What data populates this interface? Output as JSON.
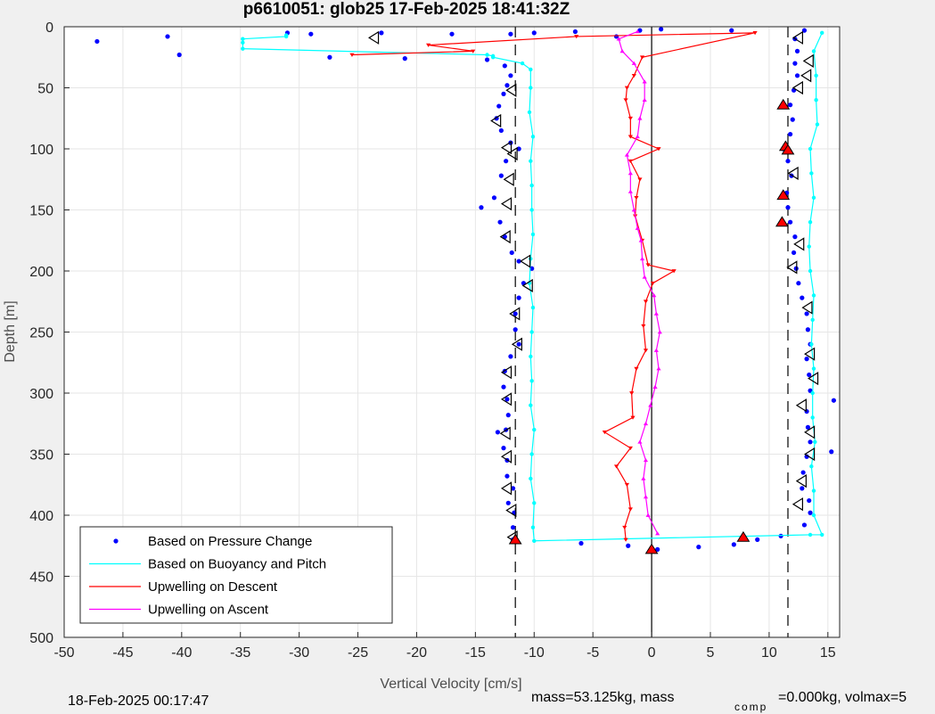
{
  "chart_data": {
    "type": "scatter",
    "title": "p6610051: glob25 17-Feb-2025 18:41:32Z",
    "xlabel": "Vertical Velocity [cm/s]",
    "ylabel": "Depth [m]",
    "xlim": [
      -50,
      16
    ],
    "ylim": [
      500,
      0
    ],
    "y_reversed": true,
    "grid": true,
    "xticks": [
      -50,
      -45,
      -40,
      -35,
      -30,
      -25,
      -20,
      -15,
      -10,
      -5,
      0,
      5,
      10,
      15
    ],
    "yticks": [
      0,
      50,
      100,
      150,
      200,
      250,
      300,
      350,
      400,
      450,
      500
    ],
    "legend_position": "bottom-left",
    "reference_lines": {
      "dashed_x": [
        -11.6,
        11.6
      ],
      "solid_x": [
        0
      ]
    },
    "series": [
      {
        "name": "Based on Pressure Change",
        "color": "#0000ff",
        "style": "dots",
        "points": [
          [
            -47.2,
            12
          ],
          [
            -41.2,
            8
          ],
          [
            -40.2,
            23
          ],
          [
            -29,
            6
          ],
          [
            -27.4,
            25
          ],
          [
            -21,
            26
          ],
          [
            -17,
            6
          ],
          [
            -14,
            27
          ],
          [
            -12.5,
            32
          ],
          [
            -12,
            40
          ],
          [
            -12.3,
            48
          ],
          [
            -12.6,
            55
          ],
          [
            -13,
            65
          ],
          [
            -13.2,
            75
          ],
          [
            -12.8,
            85
          ],
          [
            -12,
            95
          ],
          [
            -11.3,
            100
          ],
          [
            -12.4,
            110
          ],
          [
            -12.8,
            122
          ],
          [
            -13.4,
            140
          ],
          [
            -14.5,
            148
          ],
          [
            -12.9,
            160
          ],
          [
            -12.5,
            172
          ],
          [
            -11.9,
            185
          ],
          [
            -11.3,
            192
          ],
          [
            -10.2,
            198
          ],
          [
            -10.9,
            210
          ],
          [
            -11.3,
            222
          ],
          [
            -11.6,
            235
          ],
          [
            -11.6,
            248
          ],
          [
            -11.3,
            260
          ],
          [
            -12,
            270
          ],
          [
            -12.5,
            282
          ],
          [
            -12.6,
            295
          ],
          [
            -12.3,
            305
          ],
          [
            -12.2,
            318
          ],
          [
            -12.4,
            330
          ],
          [
            -13.1,
            332
          ],
          [
            -12.6,
            345
          ],
          [
            -12.3,
            355
          ],
          [
            -12.3,
            368
          ],
          [
            -11.8,
            378
          ],
          [
            -12.2,
            390
          ],
          [
            -11.7,
            398
          ],
          [
            -11.8,
            410
          ],
          [
            -11.8,
            420
          ],
          [
            -6,
            423
          ],
          [
            -2,
            425
          ],
          [
            0.5,
            428
          ],
          [
            4,
            426
          ],
          [
            7,
            424
          ],
          [
            9,
            420
          ],
          [
            11,
            417
          ],
          [
            13,
            408
          ],
          [
            13.5,
            398
          ],
          [
            13.4,
            388
          ],
          [
            12.8,
            378
          ],
          [
            12.9,
            365
          ],
          [
            13.2,
            352
          ],
          [
            15.3,
            348
          ],
          [
            13.5,
            340
          ],
          [
            13.3,
            328
          ],
          [
            13.2,
            315
          ],
          [
            15.5,
            306
          ],
          [
            13.5,
            298
          ],
          [
            13.4,
            285
          ],
          [
            13.2,
            272
          ],
          [
            13.5,
            260
          ],
          [
            13.3,
            248
          ],
          [
            13.2,
            235
          ],
          [
            12.8,
            222
          ],
          [
            12.5,
            210
          ],
          [
            12.3,
            198
          ],
          [
            12.1,
            185
          ],
          [
            12.2,
            172
          ],
          [
            11.8,
            160
          ],
          [
            11.6,
            148
          ],
          [
            11.5,
            136
          ],
          [
            11.9,
            122
          ],
          [
            11.6,
            110
          ],
          [
            11.2,
            100
          ],
          [
            11.8,
            88
          ],
          [
            12,
            76
          ],
          [
            11.8,
            64
          ],
          [
            12.1,
            52
          ],
          [
            12.4,
            40
          ],
          [
            12.2,
            30
          ],
          [
            12.4,
            20
          ],
          [
            12.2,
            10
          ],
          [
            13,
            3
          ],
          [
            6.8,
            3
          ],
          [
            0.8,
            2
          ],
          [
            -1,
            3
          ],
          [
            -3,
            8
          ],
          [
            -6.5,
            4
          ],
          [
            -10,
            5
          ],
          [
            -12,
            6
          ],
          [
            -31,
            5
          ],
          [
            -23,
            5
          ]
        ]
      },
      {
        "name": "Based on Buoyancy and Pitch",
        "color": "#00ffff",
        "style": "line-dots",
        "points": [
          [
            -31.1,
            7
          ],
          [
            -31.1,
            8
          ],
          [
            -34.8,
            10
          ],
          [
            -34.8,
            13
          ],
          [
            -34.8,
            18
          ],
          [
            -14,
            23
          ],
          [
            -13.5,
            24
          ],
          [
            -13.5,
            25
          ],
          [
            -11,
            30
          ],
          [
            -10.3,
            35
          ],
          [
            -10.3,
            50
          ],
          [
            -10.4,
            70
          ],
          [
            -10.1,
            90
          ],
          [
            -10.3,
            110
          ],
          [
            -10.2,
            130
          ],
          [
            -10.2,
            150
          ],
          [
            -10.1,
            170
          ],
          [
            -10.3,
            190
          ],
          [
            -10.4,
            210
          ],
          [
            -10.1,
            230
          ],
          [
            -10.2,
            250
          ],
          [
            -10.3,
            270
          ],
          [
            -10.2,
            290
          ],
          [
            -10.3,
            310
          ],
          [
            -10,
            330
          ],
          [
            -10.2,
            350
          ],
          [
            -10.3,
            370
          ],
          [
            -10,
            390
          ],
          [
            -10.1,
            410
          ],
          [
            -10,
            421
          ],
          [
            13.5,
            416
          ],
          [
            14.5,
            416
          ],
          [
            13.8,
            400
          ],
          [
            13.8,
            380
          ],
          [
            13.6,
            360
          ],
          [
            13.9,
            340
          ],
          [
            13.7,
            320
          ],
          [
            13.7,
            300
          ],
          [
            13.8,
            280
          ],
          [
            13.6,
            260
          ],
          [
            13.7,
            240
          ],
          [
            13.8,
            220
          ],
          [
            13.5,
            200
          ],
          [
            13.4,
            180
          ],
          [
            13.5,
            160
          ],
          [
            13.8,
            140
          ],
          [
            13.6,
            120
          ],
          [
            13.5,
            100
          ],
          [
            14.1,
            80
          ],
          [
            14,
            60
          ],
          [
            14,
            40
          ],
          [
            13.8,
            20
          ],
          [
            14.5,
            5
          ]
        ]
      },
      {
        "name": "Upwelling on Descent",
        "color": "#ff0000",
        "style": "line-triangles",
        "points": [
          [
            -25.5,
            23
          ],
          [
            -15.2,
            20
          ],
          [
            -19,
            15
          ],
          [
            -6.4,
            8
          ],
          [
            8.8,
            5
          ],
          [
            -0.8,
            25
          ],
          [
            -1.5,
            40
          ],
          [
            -2.1,
            50
          ],
          [
            -2.2,
            60
          ],
          [
            -1.8,
            75
          ],
          [
            -1.8,
            90
          ],
          [
            0.6,
            100
          ],
          [
            -1.8,
            110
          ],
          [
            -1,
            125
          ],
          [
            -1.3,
            140
          ],
          [
            -1.4,
            155
          ],
          [
            -0.8,
            175
          ],
          [
            -0.3,
            195
          ],
          [
            1.9,
            200
          ],
          [
            0.1,
            210
          ],
          [
            -0.5,
            225
          ],
          [
            -0.7,
            245
          ],
          [
            -0.5,
            265
          ],
          [
            -1.3,
            280
          ],
          [
            -1.7,
            300
          ],
          [
            -1.6,
            320
          ],
          [
            -4,
            332
          ],
          [
            -1.8,
            345
          ],
          [
            -3,
            360
          ],
          [
            -2.1,
            375
          ],
          [
            -1.8,
            395
          ],
          [
            -2.3,
            410
          ],
          [
            -2.2,
            420
          ]
        ]
      },
      {
        "name": "Upwelling on Ascent",
        "color": "#ff00ff",
        "style": "line-triangles",
        "points": [
          [
            0.5,
            415
          ],
          [
            -0.3,
            400
          ],
          [
            -0.5,
            385
          ],
          [
            -0.7,
            370
          ],
          [
            -0.5,
            355
          ],
          [
            -1,
            340
          ],
          [
            -0.5,
            325
          ],
          [
            -0.1,
            310
          ],
          [
            0.3,
            295
          ],
          [
            0.6,
            280
          ],
          [
            0.4,
            265
          ],
          [
            0.7,
            250
          ],
          [
            0.4,
            235
          ],
          [
            0.2,
            220
          ],
          [
            -0.6,
            205
          ],
          [
            -0.8,
            190
          ],
          [
            -0.9,
            175
          ],
          [
            -1.2,
            165
          ],
          [
            -1.5,
            150
          ],
          [
            -1.8,
            135
          ],
          [
            -1.8,
            120
          ],
          [
            -2.1,
            105
          ],
          [
            -1.2,
            90
          ],
          [
            -1,
            75
          ],
          [
            -0.6,
            60
          ],
          [
            -0.6,
            45
          ],
          [
            -1.5,
            30
          ],
          [
            -2.5,
            20
          ],
          [
            -2.8,
            10
          ],
          [
            -1.2,
            4
          ]
        ]
      }
    ],
    "markers_hollow": [
      [
        -23.6,
        9
      ],
      [
        -11.9,
        52
      ],
      [
        -13.2,
        77
      ],
      [
        -12.3,
        99
      ],
      [
        -11.8,
        104
      ],
      [
        -12.1,
        125
      ],
      [
        -12.3,
        145
      ],
      [
        -12.4,
        172
      ],
      [
        -10.7,
        192
      ],
      [
        -10.5,
        212
      ],
      [
        -11.6,
        235
      ],
      [
        -11.4,
        260
      ],
      [
        -12.3,
        283
      ],
      [
        -12.3,
        305
      ],
      [
        -12.4,
        333
      ],
      [
        -12.3,
        352
      ],
      [
        -12.3,
        378
      ],
      [
        -11.9,
        396
      ],
      [
        -11.8,
        418
      ],
      [
        12.5,
        9
      ],
      [
        13.4,
        28
      ],
      [
        13.2,
        40
      ],
      [
        12.5,
        50
      ],
      [
        12.1,
        120
      ],
      [
        12.6,
        178
      ],
      [
        12,
        197
      ],
      [
        13.3,
        230
      ],
      [
        13.5,
        268
      ],
      [
        13.8,
        288
      ],
      [
        12.8,
        310
      ],
      [
        13.5,
        332
      ],
      [
        13.5,
        350
      ],
      [
        12.8,
        372
      ],
      [
        12.5,
        391
      ]
    ],
    "markers_filled": [
      [
        -11.6,
        420
      ],
      [
        0,
        428
      ],
      [
        7.8,
        418
      ],
      [
        11.2,
        64
      ],
      [
        11.4,
        98
      ],
      [
        11.6,
        101
      ],
      [
        11.2,
        138
      ],
      [
        11.1,
        160
      ]
    ]
  },
  "footer": {
    "left_text": "18-Feb-2025 00:17:47",
    "right_text_main": "mass=53.125kg, mass",
    "right_text_sub": "comp",
    "right_text_tail": "=0.000kg, volmax=5"
  }
}
